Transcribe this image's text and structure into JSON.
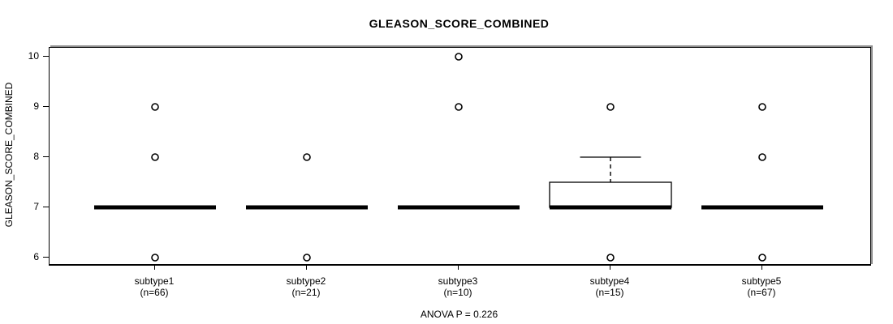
{
  "chart_data": {
    "type": "boxplot",
    "title": "GLEASON_SCORE_COMBINED",
    "ylabel": "GLEASON_SCORE_COMBINED",
    "footer": "ANOVA P = 0.226",
    "yticks": [
      6,
      7,
      8,
      9,
      10
    ],
    "ylim": [
      5.85,
      10.15
    ],
    "grid": false,
    "groups": [
      {
        "label": "subtype1",
        "n_label": "(n=66)",
        "n": 66,
        "median": 7,
        "q1": 7,
        "q3": 7,
        "whisker_low": 7,
        "whisker_high": 7,
        "outliers": [
          9,
          8,
          6
        ]
      },
      {
        "label": "subtype2",
        "n_label": "(n=21)",
        "n": 21,
        "median": 7,
        "q1": 7,
        "q3": 7,
        "whisker_low": 7,
        "whisker_high": 7,
        "outliers": [
          8,
          6
        ]
      },
      {
        "label": "subtype3",
        "n_label": "(n=10)",
        "n": 10,
        "median": 7,
        "q1": 7,
        "q3": 7,
        "whisker_low": 7,
        "whisker_high": 7,
        "outliers": [
          10,
          9
        ]
      },
      {
        "label": "subtype4",
        "n_label": "(n=15)",
        "n": 15,
        "median": 7,
        "q1": 7,
        "q3": 7.5,
        "whisker_low": 7,
        "whisker_high": 8,
        "outliers": [
          9,
          6
        ]
      },
      {
        "label": "subtype5",
        "n_label": "(n=67)",
        "n": 67,
        "median": 7,
        "q1": 7,
        "q3": 7,
        "whisker_low": 7,
        "whisker_high": 7,
        "outliers": [
          9,
          8,
          6
        ]
      }
    ],
    "colors": {
      "line": "#000000",
      "box_fill": "#ffffff",
      "frame_shadow": "#8f8f8f",
      "background": "#ffffff"
    }
  }
}
